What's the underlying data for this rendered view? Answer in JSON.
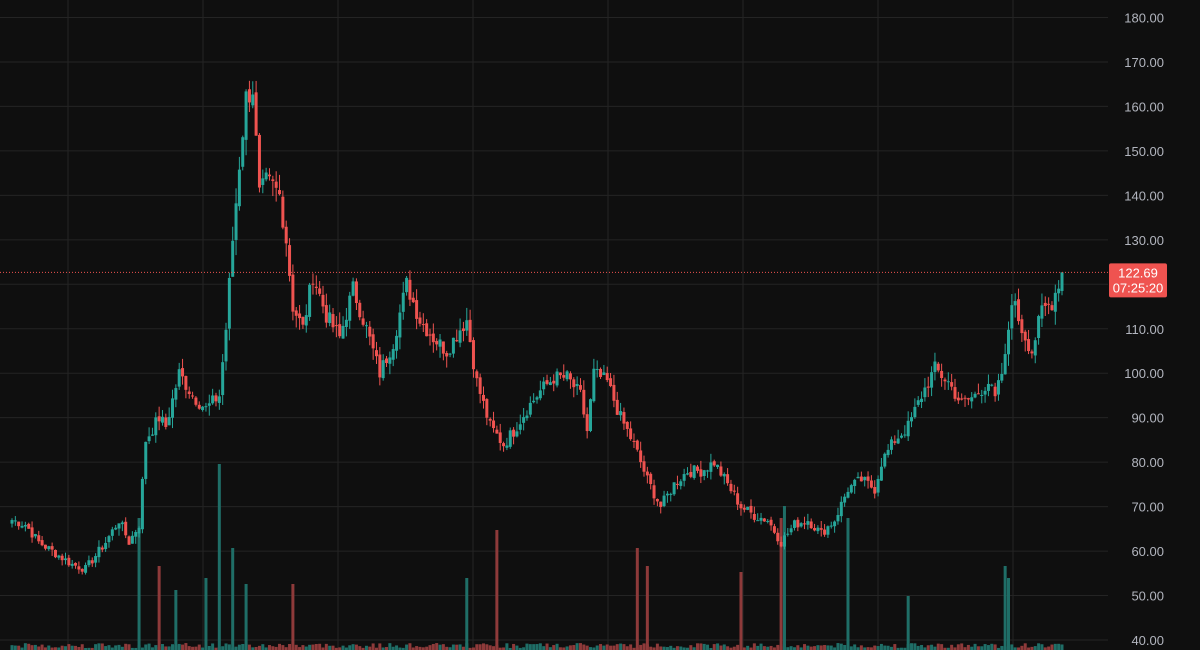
{
  "theme": {
    "background": "#0f0f0f",
    "grid": "#242424",
    "up": "#26a69a",
    "down": "#ef5350",
    "up_volume": "#1f6e67",
    "down_volume": "#8e3a3a",
    "axis_text": "#b2b5be",
    "price_line": "#ef5350"
  },
  "current_price": {
    "label": "122.69",
    "value": 122.69,
    "countdown": "07:25:20"
  },
  "chart_data": {
    "type": "candlestick",
    "grid": true,
    "price_axis": {
      "side": "right",
      "range": [
        40,
        183
      ],
      "ticks": [
        {
          "value": 180,
          "label": "180.00"
        },
        {
          "value": 170,
          "label": "170.00"
        },
        {
          "value": 160,
          "label": "160.00"
        },
        {
          "value": 150,
          "label": "150.00"
        },
        {
          "value": 140,
          "label": "140.00"
        },
        {
          "value": 130,
          "label": "130.00"
        },
        {
          "value": 110,
          "label": "110.00"
        },
        {
          "value": 100,
          "label": "100.00"
        },
        {
          "value": 90,
          "label": "90.00"
        },
        {
          "value": 80,
          "label": "80.00"
        },
        {
          "value": 70,
          "label": "70.00"
        },
        {
          "value": 60,
          "label": "60.00"
        },
        {
          "value": 50,
          "label": "50.00"
        },
        {
          "value": 40,
          "label": "40.00"
        }
      ]
    },
    "vertical_gridlines": 11,
    "waypoints": [
      [
        0,
        67
      ],
      [
        4,
        66
      ],
      [
        8,
        62
      ],
      [
        12,
        60
      ],
      [
        18,
        57
      ],
      [
        22,
        56
      ],
      [
        28,
        62
      ],
      [
        32,
        67
      ],
      [
        35,
        62
      ],
      [
        38,
        66
      ],
      [
        40,
        85
      ],
      [
        44,
        90
      ],
      [
        46,
        88
      ],
      [
        50,
        100
      ],
      [
        54,
        95
      ],
      [
        58,
        92
      ],
      [
        62,
        95
      ],
      [
        64,
        110
      ],
      [
        66,
        130
      ],
      [
        68,
        147
      ],
      [
        70,
        162
      ],
      [
        72,
        164
      ],
      [
        74,
        140
      ],
      [
        76,
        143
      ],
      [
        78,
        142
      ],
      [
        80,
        140
      ],
      [
        82,
        130
      ],
      [
        84,
        115
      ],
      [
        87,
        110
      ],
      [
        90,
        122
      ],
      [
        94,
        113
      ],
      [
        98,
        108
      ],
      [
        102,
        119
      ],
      [
        106,
        110
      ],
      [
        110,
        100
      ],
      [
        114,
        107
      ],
      [
        118,
        120
      ],
      [
        122,
        112
      ],
      [
        126,
        108
      ],
      [
        130,
        105
      ],
      [
        134,
        110
      ],
      [
        136,
        112
      ],
      [
        139,
        98
      ],
      [
        143,
        88
      ],
      [
        147,
        84
      ],
      [
        150,
        87
      ],
      [
        154,
        92
      ],
      [
        158,
        96
      ],
      [
        162,
        99
      ],
      [
        166,
        99
      ],
      [
        170,
        95
      ],
      [
        172,
        87
      ],
      [
        174,
        100
      ],
      [
        178,
        98
      ],
      [
        182,
        90
      ],
      [
        186,
        84
      ],
      [
        190,
        76
      ],
      [
        194,
        70
      ],
      [
        198,
        75
      ],
      [
        202,
        78
      ],
      [
        206,
        78
      ],
      [
        210,
        80
      ],
      [
        214,
        75
      ],
      [
        218,
        70
      ],
      [
        222,
        68
      ],
      [
        226,
        67
      ],
      [
        230,
        62
      ],
      [
        234,
        66
      ],
      [
        238,
        67
      ],
      [
        242,
        64
      ],
      [
        246,
        67
      ],
      [
        250,
        74
      ],
      [
        254,
        76
      ],
      [
        258,
        74
      ],
      [
        260,
        80
      ],
      [
        264,
        85
      ],
      [
        268,
        88
      ],
      [
        272,
        95
      ],
      [
        276,
        101
      ],
      [
        280,
        98
      ],
      [
        284,
        93
      ],
      [
        288,
        95
      ],
      [
        292,
        98
      ],
      [
        294,
        94
      ],
      [
        297,
        103
      ],
      [
        299,
        117
      ],
      [
        302,
        110
      ],
      [
        305,
        105
      ],
      [
        308,
        114
      ],
      [
        311,
        116
      ],
      [
        314,
        122.69
      ]
    ],
    "volume_spikes": [
      [
        38,
        22
      ],
      [
        44,
        14
      ],
      [
        49,
        10
      ],
      [
        58,
        12
      ],
      [
        62,
        31
      ],
      [
        66,
        17
      ],
      [
        70,
        11
      ],
      [
        84,
        11
      ],
      [
        136,
        12
      ],
      [
        145,
        20
      ],
      [
        187,
        17
      ],
      [
        190,
        14
      ],
      [
        218,
        13
      ],
      [
        230,
        22
      ],
      [
        231,
        24
      ],
      [
        250,
        22
      ],
      [
        268,
        9
      ],
      [
        297,
        14
      ],
      [
        298,
        12
      ]
    ]
  }
}
